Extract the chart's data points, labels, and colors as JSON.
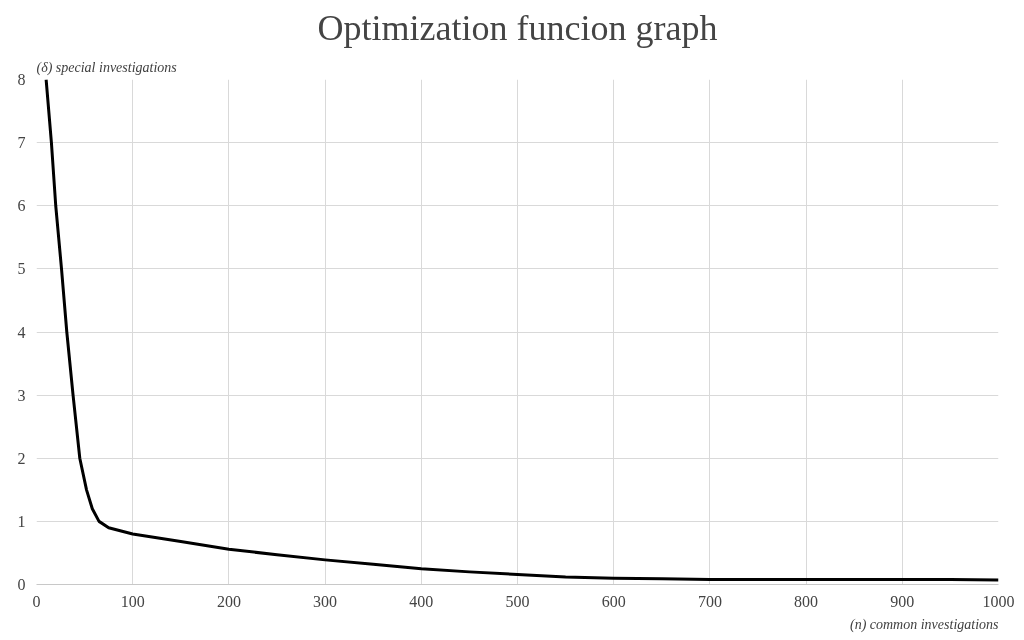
{
  "chart_data": {
    "type": "line",
    "title": "Optimization funcion graph",
    "xlabel": "(n) common investigations",
    "ylabel": "(δ) special investigations",
    "series": [
      {
        "color": "#000000",
        "x": [
          10,
          15.5,
          20,
          26,
          31.5,
          38,
          45,
          52,
          58,
          65,
          75,
          100,
          150,
          200,
          250,
          300,
          350,
          400,
          450,
          500,
          550,
          600,
          650,
          700,
          750,
          800,
          850,
          900,
          950,
          1000
        ],
        "values": [
          8,
          7,
          6,
          5,
          4,
          3,
          2,
          1.5,
          1.2,
          1.0,
          0.9,
          0.8,
          0.68,
          0.56,
          0.47,
          0.39,
          0.32,
          0.25,
          0.2,
          0.16,
          0.12,
          0.1,
          0.09,
          0.08,
          0.08,
          0.08,
          0.08,
          0.08,
          0.08,
          0.07
        ]
      }
    ],
    "xlim": [
      0,
      1000
    ],
    "ylim": [
      0,
      8
    ],
    "xticks": [
      0,
      100,
      200,
      300,
      400,
      500,
      600,
      700,
      800,
      900,
      1000
    ],
    "yticks": [
      0,
      1,
      2,
      3,
      4,
      5,
      6,
      7,
      8
    ],
    "grid": true,
    "line_style": "solid",
    "marker": "none"
  }
}
